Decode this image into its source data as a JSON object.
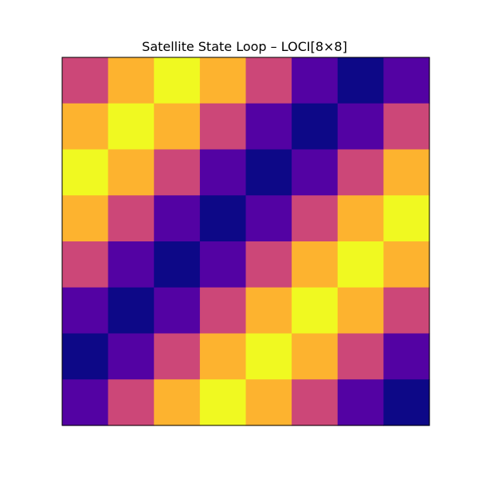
{
  "chart_data": {
    "type": "heatmap",
    "title": "Satellite State Loop – LOCI[8×8]",
    "xlabel": "",
    "ylabel": "",
    "axes_visible": false,
    "colormap": "plasma",
    "color_levels": {
      "0": "#0d0887",
      "1": "#5302a3",
      "2": "#cc4778",
      "3": "#fdb32f",
      "4": "#f0f921"
    },
    "grid": [
      [
        2,
        3,
        4,
        3,
        2,
        1,
        0,
        1
      ],
      [
        3,
        4,
        3,
        2,
        1,
        0,
        1,
        2
      ],
      [
        4,
        3,
        2,
        1,
        0,
        1,
        2,
        3
      ],
      [
        3,
        2,
        1,
        0,
        1,
        2,
        3,
        4
      ],
      [
        2,
        1,
        0,
        1,
        2,
        3,
        4,
        3
      ],
      [
        1,
        0,
        1,
        2,
        3,
        4,
        3,
        2
      ],
      [
        0,
        1,
        2,
        3,
        4,
        3,
        2,
        1
      ],
      [
        1,
        2,
        3,
        4,
        3,
        2,
        1,
        0
      ]
    ]
  }
}
